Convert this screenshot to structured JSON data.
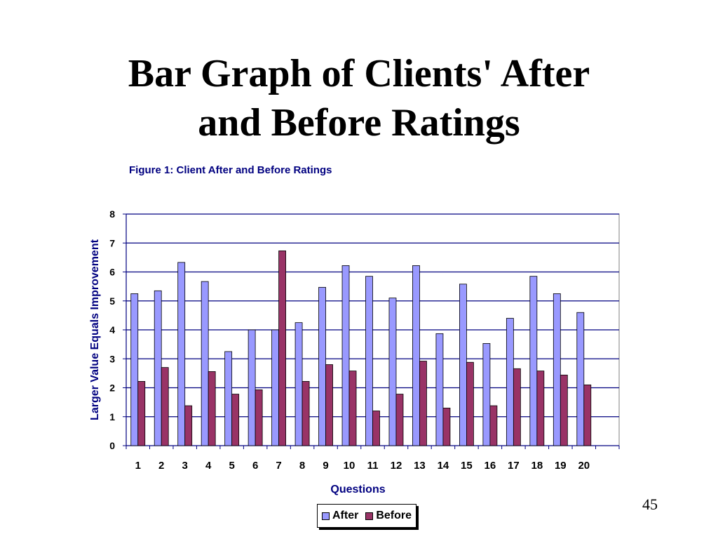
{
  "slide": {
    "title_line1": "Bar Graph of Clients' After",
    "title_line2": "and Before Ratings",
    "page_number": "45"
  },
  "chart_data": {
    "type": "bar",
    "title": "Figure 1: Client After and Before Ratings",
    "xlabel": "Questions",
    "ylabel": "Larger Value Equals Improvement",
    "categories": [
      "1",
      "2",
      "3",
      "4",
      "5",
      "6",
      "7",
      "8",
      "9",
      "10",
      "11",
      "12",
      "13",
      "14",
      "15",
      "16",
      "17",
      "18",
      "19",
      "20"
    ],
    "ylim": [
      0,
      8
    ],
    "yticks": [
      0,
      1,
      2,
      3,
      4,
      5,
      6,
      7,
      8
    ],
    "grid": true,
    "legend_position": "bottom",
    "series": [
      {
        "name": "After",
        "color": "#9999ff",
        "values": [
          5.25,
          5.35,
          6.33,
          5.67,
          3.25,
          4.0,
          4.0,
          4.25,
          5.47,
          6.22,
          5.85,
          5.1,
          6.22,
          3.87,
          5.58,
          3.53,
          4.4,
          5.85,
          5.25,
          4.6
        ]
      },
      {
        "name": "Before",
        "color": "#993366",
        "values": [
          2.22,
          2.7,
          1.38,
          2.56,
          1.78,
          1.93,
          6.73,
          2.22,
          2.8,
          2.58,
          1.2,
          1.78,
          2.92,
          1.3,
          2.88,
          1.38,
          2.66,
          2.58,
          2.44,
          2.1
        ]
      }
    ],
    "colors": {
      "title": "#000080",
      "gridline": "#000080",
      "axis": "#000080",
      "tick_labels": "#000080"
    }
  }
}
